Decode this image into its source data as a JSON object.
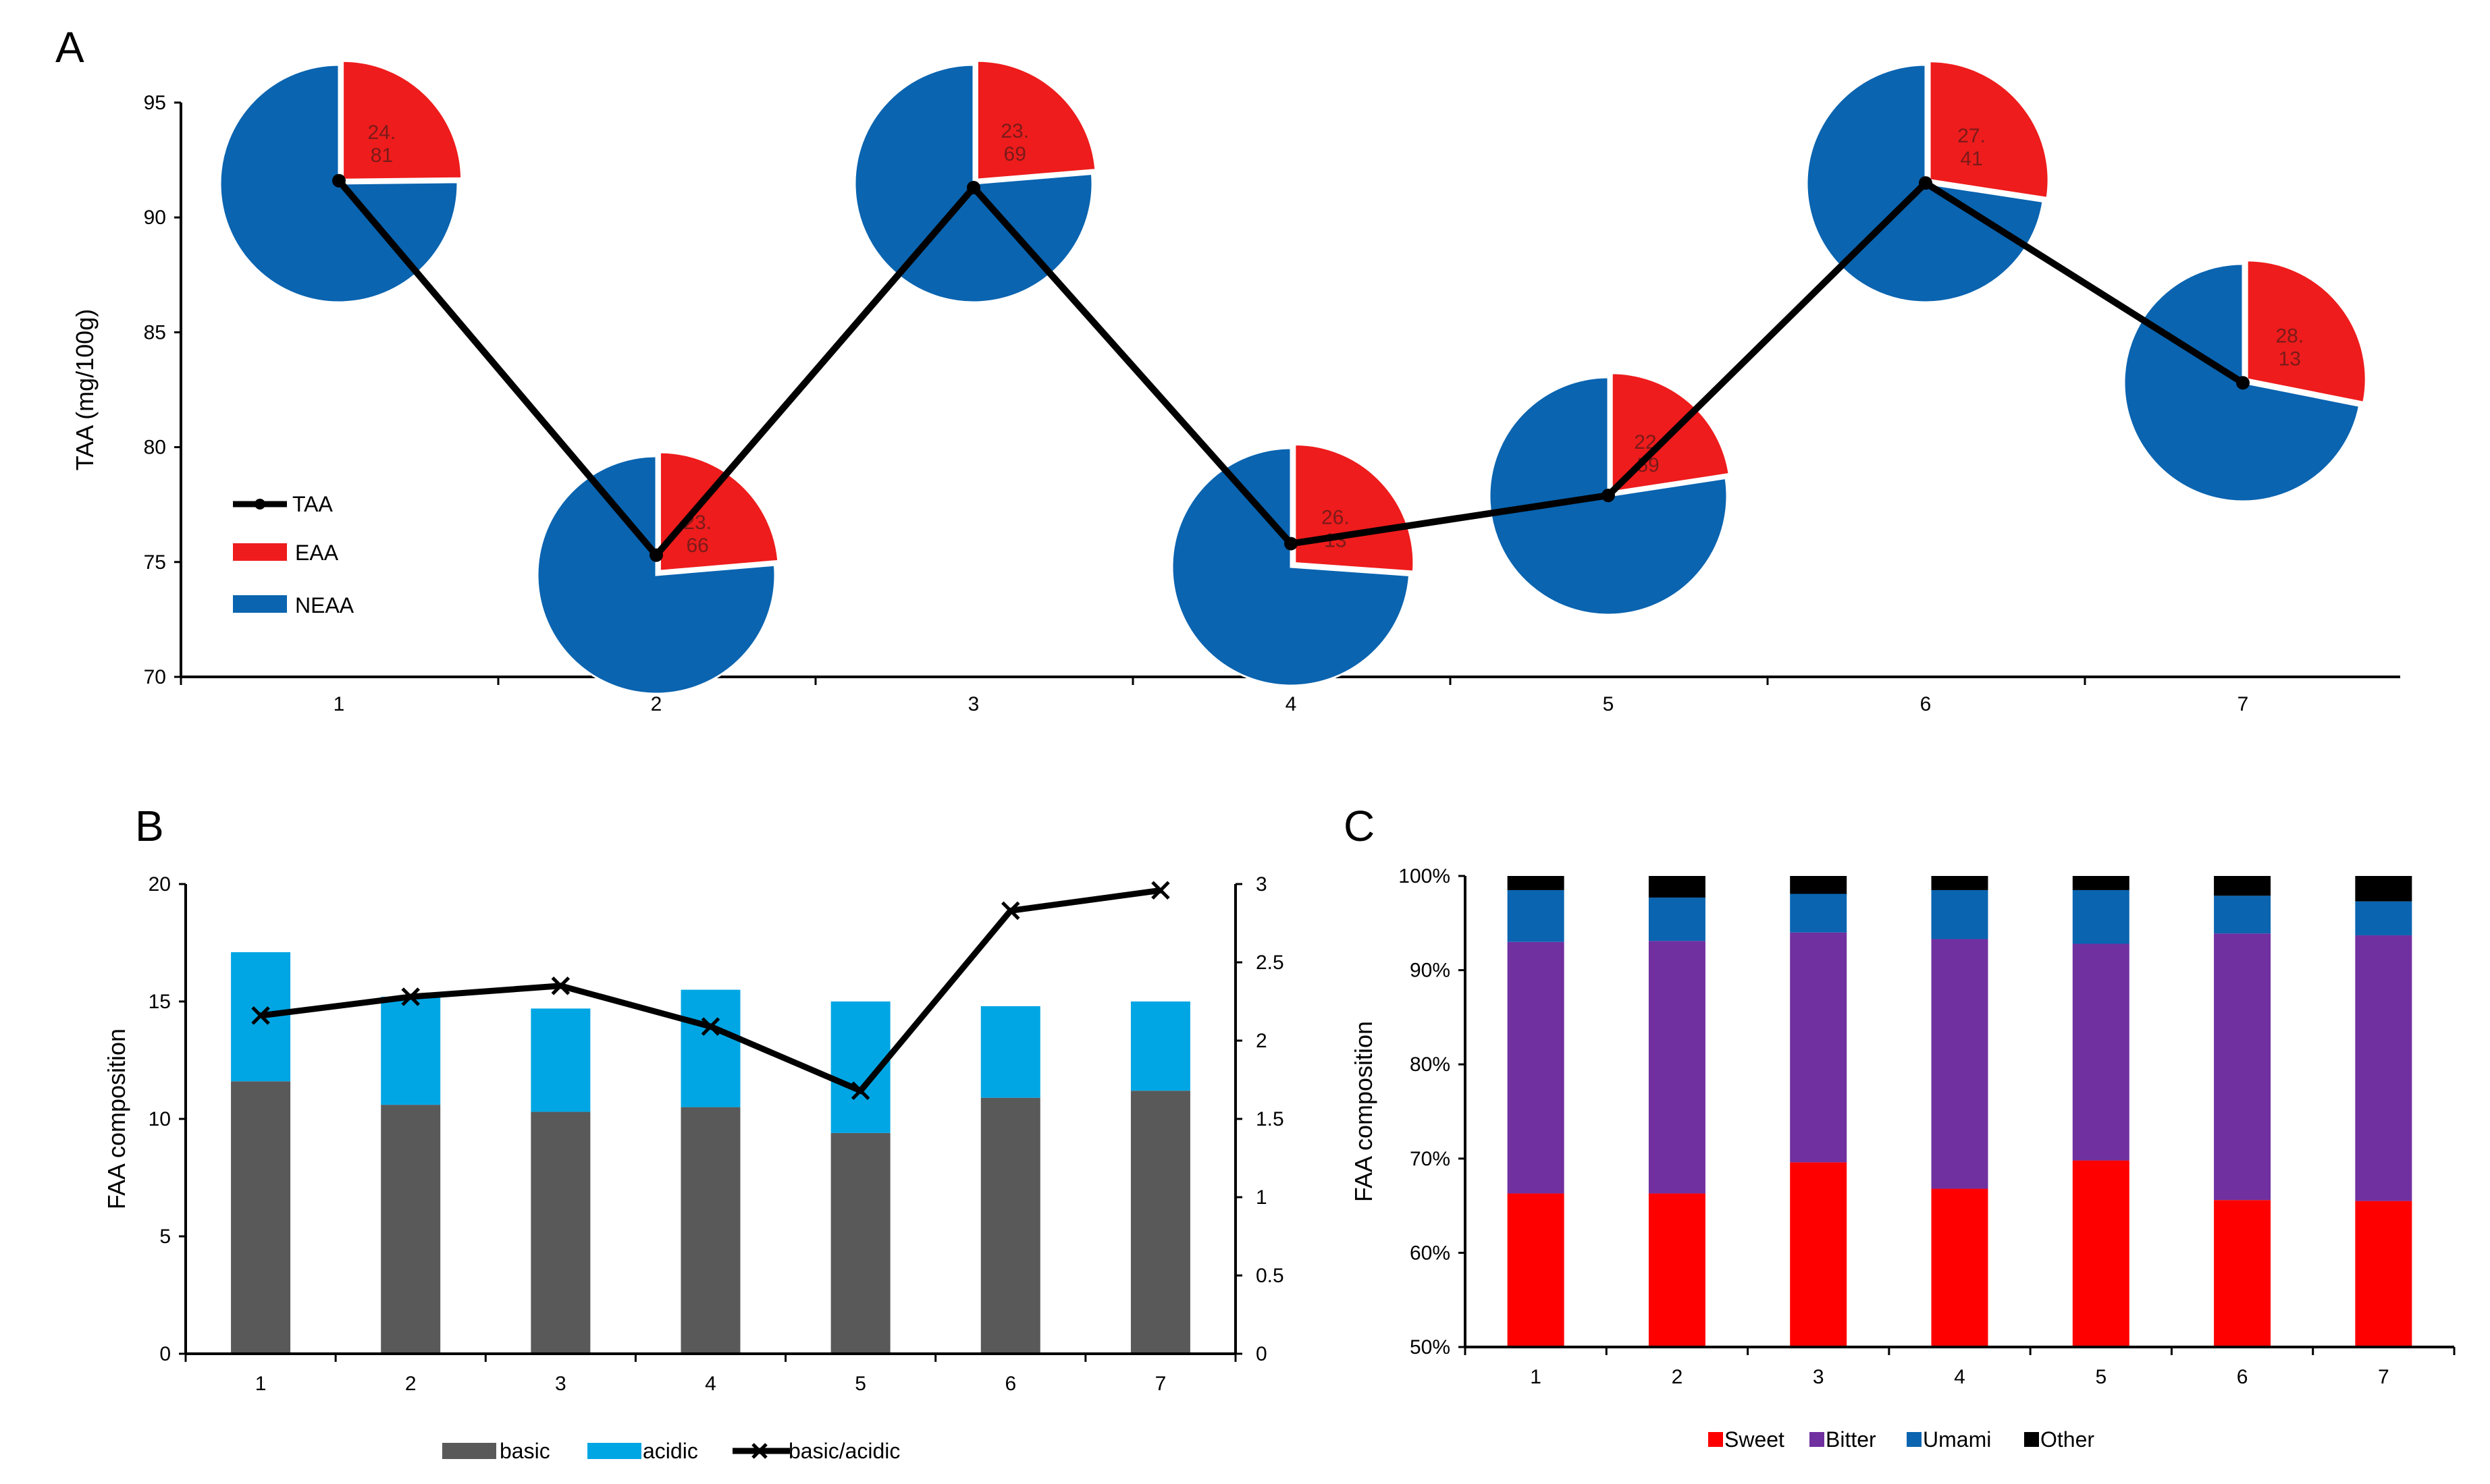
{
  "colors": {
    "eaa": "#ee1c1c",
    "neaa": "#0a64b0",
    "taa_line": "#000000",
    "basic": "#595959",
    "acidic": "#00a6e4",
    "ratio_line": "#000000",
    "sweet": "#ff0000",
    "bitter": "#7030a0",
    "umami": "#0a64b0",
    "other": "#000000"
  },
  "chart_data": [
    {
      "panel": "A",
      "type": "line",
      "ylabel": "TAA (mg/100g)",
      "ylim": [
        70,
        95
      ],
      "yticks": [
        "70",
        "75",
        "80",
        "85",
        "90",
        "95"
      ],
      "categories": [
        "1",
        "2",
        "3",
        "4",
        "5",
        "6",
        "7"
      ],
      "series": [
        {
          "name": "TAA",
          "values": [
            91.6,
            75.3,
            91.3,
            75.8,
            77.9,
            91.5,
            82.8
          ]
        }
      ],
      "pies": [
        {
          "label_top": "24.",
          "label_bottom": "81",
          "eaa_pct": 24.81
        },
        {
          "label_top": "23.",
          "label_bottom": "66",
          "eaa_pct": 23.66
        },
        {
          "label_top": "23.",
          "label_bottom": "69",
          "eaa_pct": 23.69
        },
        {
          "label_top": "26.",
          "label_bottom": "13",
          "eaa_pct": 26.13
        },
        {
          "label_top": "22.",
          "label_bottom": "59",
          "eaa_pct": 22.59
        },
        {
          "label_top": "27.",
          "label_bottom": "41",
          "eaa_pct": 27.41
        },
        {
          "label_top": "28.",
          "label_bottom": "13",
          "eaa_pct": 28.13
        }
      ],
      "legend": [
        "TAA",
        "EAA",
        "NEAA"
      ]
    },
    {
      "panel": "B",
      "type": "bar",
      "ylabel": "FAA composition",
      "ylim": [
        0,
        20
      ],
      "yticks": [
        "0",
        "5",
        "10",
        "15",
        "20"
      ],
      "y2lim": [
        0,
        3
      ],
      "y2ticks": [
        "0",
        "0.5",
        "1",
        "1.5",
        "2",
        "2.5",
        "3"
      ],
      "categories": [
        "1",
        "2",
        "3",
        "4",
        "5",
        "6",
        "7"
      ],
      "series": [
        {
          "name": "basic",
          "values": [
            11.6,
            10.6,
            10.3,
            10.5,
            9.4,
            10.9,
            11.2
          ]
        },
        {
          "name": "acidic",
          "values": [
            5.5,
            4.6,
            4.4,
            5.0,
            5.6,
            3.9,
            3.8
          ]
        }
      ],
      "ratio_series": {
        "name": "basic/acidic",
        "values": [
          2.16,
          2.28,
          2.35,
          2.09,
          1.68,
          2.83,
          2.96
        ]
      },
      "legend": [
        "basic",
        "acidic",
        "basic/acidic"
      ]
    },
    {
      "panel": "C",
      "type": "bar",
      "ylabel": "FAA composition",
      "ylim": [
        50,
        100
      ],
      "yticks": [
        "50%",
        "60%",
        "70%",
        "80%",
        "90%",
        "100%"
      ],
      "categories": [
        "1",
        "2",
        "3",
        "4",
        "5",
        "6",
        "7"
      ],
      "series": [
        {
          "name": "Sweet",
          "values": [
            66.3,
            66.3,
            69.6,
            66.8,
            69.8,
            65.6,
            65.5
          ]
        },
        {
          "name": "Bitter",
          "values": [
            26.7,
            26.8,
            24.4,
            26.5,
            23.0,
            28.3,
            28.2
          ]
        },
        {
          "name": "Umami",
          "values": [
            5.5,
            4.6,
            4.1,
            5.2,
            5.7,
            4.0,
            3.6
          ]
        },
        {
          "name": "Other",
          "values": [
            1.5,
            2.3,
            1.9,
            1.5,
            1.5,
            2.1,
            2.7
          ]
        }
      ],
      "legend": [
        "Sweet",
        "Bitter",
        "Umami",
        "Other"
      ]
    }
  ],
  "panels": {
    "a": "A",
    "b": "B",
    "c": "C"
  }
}
